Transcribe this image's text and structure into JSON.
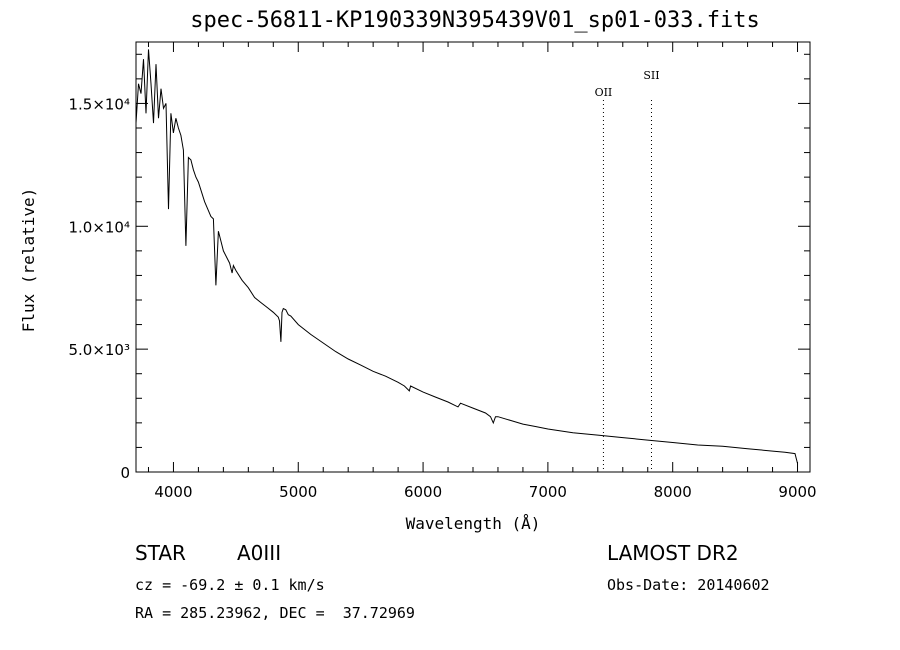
{
  "chart_data": {
    "type": "line",
    "title": "spec-56811-KP190339N395439V01_sp01-033.fits",
    "xlabel": "Wavelength (Å)",
    "ylabel": "Flux (relative)",
    "xlim": [
      3700,
      9100
    ],
    "ylim": [
      0,
      17500
    ],
    "x_ticks": [
      {
        "value": 4000,
        "label": "4000"
      },
      {
        "value": 5000,
        "label": "5000"
      },
      {
        "value": 6000,
        "label": "6000"
      },
      {
        "value": 7000,
        "label": "7000"
      },
      {
        "value": 8000,
        "label": "8000"
      },
      {
        "value": 9000,
        "label": "9000"
      }
    ],
    "y_ticks": [
      {
        "value": 0,
        "label": "0"
      },
      {
        "value": 5000,
        "label": "5.0×10³"
      },
      {
        "value": 10000,
        "label": "1.0×10⁴"
      },
      {
        "value": 15000,
        "label": "1.5×10⁴"
      }
    ],
    "series": [
      {
        "x": [
          3700,
          3720,
          3740,
          3760,
          3780,
          3800,
          3820,
          3840,
          3860,
          3880,
          3900,
          3920,
          3940,
          3960,
          3980,
          4000,
          4020,
          4040,
          4060,
          4080,
          4100,
          4120,
          4140,
          4160,
          4180,
          4200,
          4250,
          4300,
          4320,
          4340,
          4360,
          4380,
          4400,
          4450,
          4470,
          4480,
          4500,
          4550,
          4600,
          4650,
          4700,
          4750,
          4800,
          4840,
          4850,
          4861,
          4870,
          4880,
          4900,
          4920,
          4940,
          5000,
          5100,
          5200,
          5300,
          5400,
          5500,
          5600,
          5700,
          5800,
          5850,
          5890,
          5900,
          6000,
          6100,
          6200,
          6280,
          6300,
          6400,
          6500,
          6540,
          6563,
          6580,
          6600,
          6700,
          6800,
          6900,
          7000,
          7200,
          7400,
          7600,
          7800,
          8000,
          8200,
          8400,
          8600,
          8700,
          8800,
          8900,
          8980,
          9000
        ],
        "y": [
          14200,
          15800,
          15400,
          16800,
          14600,
          17200,
          15800,
          14200,
          16600,
          14400,
          15600,
          14800,
          15000,
          10700,
          14600,
          13800,
          14400,
          14000,
          13700,
          13100,
          9200,
          12800,
          12700,
          12300,
          12000,
          11800,
          11000,
          10400,
          10300,
          7600,
          9800,
          9400,
          9000,
          8500,
          8100,
          8400,
          8200,
          7800,
          7500,
          7100,
          6900,
          6700,
          6500,
          6300,
          6150,
          5300,
          6500,
          6650,
          6600,
          6400,
          6350,
          6000,
          5600,
          5250,
          4900,
          4600,
          4350,
          4100,
          3900,
          3650,
          3500,
          3300,
          3500,
          3250,
          3050,
          2850,
          2650,
          2800,
          2600,
          2400,
          2250,
          2000,
          2250,
          2250,
          2100,
          1950,
          1850,
          1750,
          1600,
          1500,
          1400,
          1300,
          1200,
          1100,
          1050,
          950,
          900,
          850,
          800,
          750,
          350
        ]
      }
    ],
    "annotations": [
      {
        "label": "OII",
        "x": 7445
      },
      {
        "label": "SII",
        "x": 7830
      }
    ]
  },
  "info": {
    "object_class": "STAR",
    "subclass": "A0III",
    "survey": "LAMOST DR2",
    "cz": "cz = -69.2 ± 0.1 km/s",
    "obs_date": "Obs-Date: 20140602",
    "coords": "RA = 285.23962, DEC =  37.72969"
  }
}
